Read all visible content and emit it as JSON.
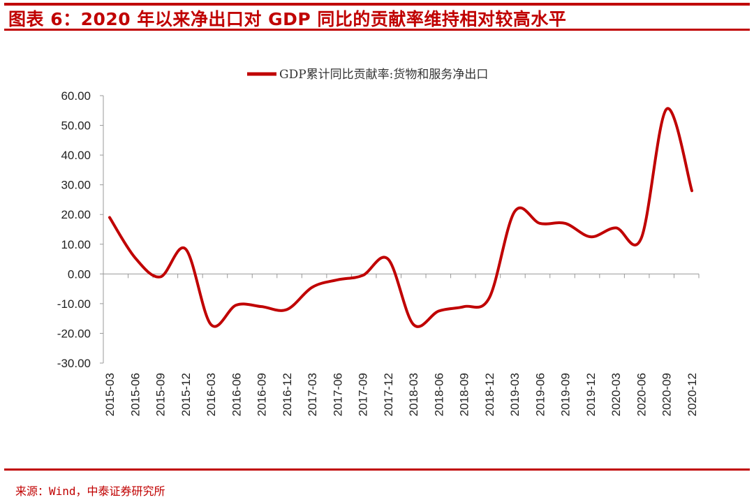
{
  "header": {
    "title": "图表 6：2020 年以来净出口对 GDP 同比的贡献率维持相对较高水平"
  },
  "footer": {
    "source": "来源：Wind，中泰证券研究所"
  },
  "colors": {
    "accent": "#c00000",
    "series": "#c00000"
  },
  "chart_data": {
    "type": "line",
    "title": "",
    "xlabel": "",
    "ylabel": "",
    "ylim": [
      -30,
      60
    ],
    "yticks": [
      "60.00",
      "50.00",
      "40.00",
      "30.00",
      "20.00",
      "10.00",
      "0.00",
      "-10.00",
      "-20.00",
      "-30.00"
    ],
    "grid": false,
    "legend_position": "top",
    "categories": [
      "2015-03",
      "2015-06",
      "2015-09",
      "2015-12",
      "2016-03",
      "2016-06",
      "2016-09",
      "2016-12",
      "2017-03",
      "2017-06",
      "2017-09",
      "2017-12",
      "2018-03",
      "2018-06",
      "2018-09",
      "2018-12",
      "2019-03",
      "2019-06",
      "2019-09",
      "2019-12",
      "2020-03",
      "2020-06",
      "2020-09",
      "2020-12"
    ],
    "series": [
      {
        "name": "GDP累计同比贡献率:货物和服务净出口",
        "values": [
          19.0,
          5.5,
          -1.0,
          8.4,
          -17.0,
          -10.5,
          -11.0,
          -12.0,
          -4.5,
          -2.0,
          -0.5,
          5.0,
          -17.0,
          -12.5,
          -11.0,
          -8.0,
          21.0,
          17.0,
          17.0,
          12.5,
          15.5,
          12.0,
          55.5,
          28.0
        ]
      }
    ]
  }
}
